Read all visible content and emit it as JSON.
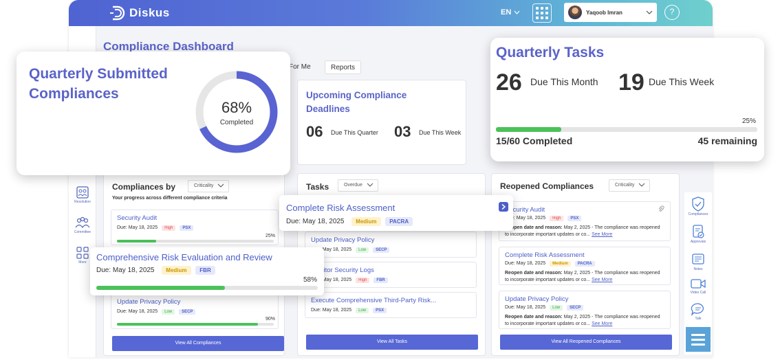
{
  "app": {
    "brand": "Diskus",
    "language": "EN",
    "user_name": "Yaqoob Imran",
    "help_symbol": "?"
  },
  "page": {
    "title": "Compliance Dashboard",
    "tabs": [
      "For Me",
      "Reports"
    ]
  },
  "left_nav": [
    {
      "label": "Resolution",
      "icon": "resolution-icon"
    },
    {
      "label": "Committee",
      "icon": "committee-icon"
    },
    {
      "label": "More",
      "icon": "more-grid-icon"
    }
  ],
  "right_nav": [
    {
      "label": "Compliances",
      "icon": "shield-check-icon"
    },
    {
      "label": "Approvals",
      "icon": "approvals-icon"
    },
    {
      "label": "Notes",
      "icon": "notes-icon"
    },
    {
      "label": "Video Call",
      "icon": "video-call-icon"
    },
    {
      "label": "Talk",
      "icon": "talk-icon"
    }
  ],
  "quarterly_submitted": {
    "title": "Quarterly Submitted Compliances",
    "percent": 68,
    "percent_label": "68%",
    "caption": "Completed"
  },
  "upcoming_deadlines": {
    "title": "Upcoming Compliance Deadlines",
    "quarter_count": "06",
    "quarter_label": "Due This Quarter",
    "week_count": "03",
    "week_label": "Due This Week"
  },
  "quarterly_tasks": {
    "title": "Quarterly Tasks",
    "month_count": "26",
    "month_label": "Due This Month",
    "week_count": "19",
    "week_label": "Due This Week",
    "percent": 25,
    "percent_label": "25%",
    "completed_label": "15/60 Completed",
    "remaining_label": "45 remaining"
  },
  "compliances_by": {
    "title": "Compliances by",
    "filter": "Criticality",
    "subtitle": "Your progress across different compliance criteria",
    "items": [
      {
        "title": "Security Audit",
        "due": "Due: May 18, 2025",
        "criticality": "High",
        "authority": "PSX",
        "percent": 25,
        "percent_label": "25%"
      },
      {
        "title": "Update Privacy Policy",
        "due": "Due: May 18, 2025",
        "criticality": "Low",
        "authority": "SECP",
        "percent": 90,
        "percent_label": "90%"
      }
    ],
    "button": "View All Compliances"
  },
  "floating_compliance": {
    "title": "Comprehensive Risk Evaluation and Review",
    "due": "Due: May 18, 2025",
    "criticality": "Medium",
    "authority": "FBR",
    "percent": 58,
    "percent_label": "58%"
  },
  "tasks": {
    "title": "Tasks",
    "filter": "Overdue",
    "items": [
      {
        "title": "Update Privacy Policy",
        "due": "Due: May 18, 2025",
        "criticality": "Low",
        "authority": "SECP"
      },
      {
        "title": "Monitor Security Logs",
        "due": "Due: May 18, 2025",
        "criticality": "High",
        "authority": "FBR"
      },
      {
        "title": "Execute Comprehensive Third-Party Risk...",
        "due": "Due: May 18, 2025",
        "criticality": "Low",
        "authority": "PSX"
      }
    ],
    "button": "View All Tasks"
  },
  "floating_task": {
    "title": "Complete Risk Assessment",
    "due": "Due: May 18, 2025",
    "criticality": "Medium",
    "authority": "PACRA"
  },
  "reopened": {
    "title": "Reopened Compliances",
    "filter": "Criticality",
    "reason_label": "Reopen date and reason:",
    "reason_text": "May 2, 2025 - The compliance was reopened to incorporate important updates or co...",
    "see_more": "See More",
    "items": [
      {
        "title": "Security Audit",
        "due": "Due: May 18, 2025",
        "criticality": "High",
        "authority": "PSX"
      },
      {
        "title": "Complete Risk Assessment",
        "due": "Due: May 18, 2025",
        "criticality": "Medium",
        "authority": "PACRA"
      },
      {
        "title": "Update Privacy Policy",
        "due": "Due: May 18, 2025",
        "criticality": "Low",
        "authority": "SECP"
      }
    ],
    "button": "View All Reopened Compliances"
  },
  "colors": {
    "brand": "#5a63c8",
    "progress": "#4cc15a",
    "button": "#5767d5"
  }
}
